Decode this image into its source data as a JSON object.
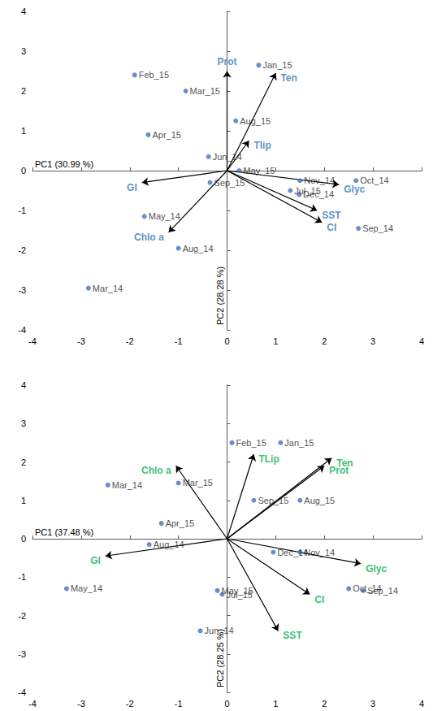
{
  "chart_data": [
    {
      "type": "scatter",
      "x_label": "PC1 (30.99 %)",
      "y_label": "PC2 (28.28 %)",
      "xlim": [
        -4,
        4
      ],
      "ylim": [
        -4,
        4
      ],
      "xticks": [
        -4,
        -3,
        -2,
        -1,
        0,
        1,
        2,
        3,
        4
      ],
      "yticks": [
        -4,
        -3,
        -2,
        -1,
        0,
        1,
        2,
        3,
        4
      ],
      "grid": false,
      "points": {
        "labels": [
          "Feb_15",
          "Mar_15",
          "Apr_15",
          "Jun_14",
          "Sep_15",
          "May_14",
          "Aug_14",
          "Mar_14",
          "Jan_15",
          "Aug_15",
          "May_15",
          "Nov_14",
          "Jul_15",
          "Dec_14",
          "Oct_14",
          "Sep_14"
        ],
        "x": [
          -1.9,
          -0.85,
          -1.62,
          -0.38,
          -0.35,
          -1.7,
          -1.0,
          -2.85,
          0.65,
          0.18,
          0.25,
          1.5,
          1.3,
          1.48,
          2.65,
          2.7
        ],
        "y": [
          2.4,
          2.0,
          0.9,
          0.35,
          -0.3,
          -1.15,
          -1.95,
          -2.95,
          2.65,
          1.25,
          0.0,
          -0.25,
          -0.5,
          -0.6,
          -0.25,
          -1.45
        ],
        "color": "#4472c4"
      },
      "loadings": {
        "labels": [
          "Prot",
          "Ten",
          "Tlip",
          "GI",
          "Chlo a",
          "Glyc",
          "SST",
          "CI"
        ],
        "x": [
          0.0,
          1.0,
          0.45,
          -1.75,
          -1.2,
          2.3,
          1.85,
          1.95
        ],
        "y": [
          2.5,
          2.45,
          0.75,
          -0.3,
          -1.55,
          -0.35,
          -1.0,
          -1.3
        ],
        "color": "#2e75b6"
      }
    },
    {
      "type": "scatter",
      "x_label": "PC1 (37.48 %)",
      "y_label": "PC2 (28.25 %)",
      "xlim": [
        -4,
        4
      ],
      "ylim": [
        -4,
        4
      ],
      "xticks": [
        -4,
        -3,
        -2,
        -1,
        0,
        1,
        2,
        3,
        4
      ],
      "yticks": [
        -4,
        -3,
        -2,
        -1,
        0,
        1,
        2,
        3,
        4
      ],
      "grid": false,
      "points": {
        "labels": [
          "Feb_15",
          "Jan_15",
          "Mar_14",
          "Mar_15",
          "Sep_15",
          "Aug_15",
          "Apr_15",
          "Aug_14",
          "Nov_14",
          "Dec_14",
          "May_14",
          "May_15",
          "Jul_15",
          "Oct_14",
          "Sep_14",
          "Jun_14"
        ],
        "x": [
          0.1,
          1.1,
          -2.45,
          -1.0,
          0.55,
          1.5,
          -1.35,
          -1.6,
          1.5,
          0.95,
          -3.3,
          -0.2,
          -0.1,
          2.5,
          2.8,
          -0.55
        ],
        "y": [
          2.5,
          2.5,
          1.4,
          1.45,
          1.0,
          1.0,
          0.4,
          -0.15,
          -0.35,
          -0.35,
          -1.3,
          -1.35,
          -1.45,
          -1.3,
          -1.35,
          -2.4
        ],
        "color": "#4472c4"
      },
      "loadings": {
        "labels": [
          "Chlo a",
          "TLip",
          "Ten",
          "Prot",
          "GI",
          "Glyc",
          "CI",
          "SST"
        ],
        "x": [
          -1.05,
          0.55,
          2.15,
          2.0,
          -2.5,
          2.75,
          1.7,
          1.05
        ],
        "y": [
          1.9,
          2.2,
          2.1,
          1.9,
          -0.45,
          -0.65,
          -1.45,
          -2.4
        ],
        "color": "#00b050"
      }
    }
  ]
}
